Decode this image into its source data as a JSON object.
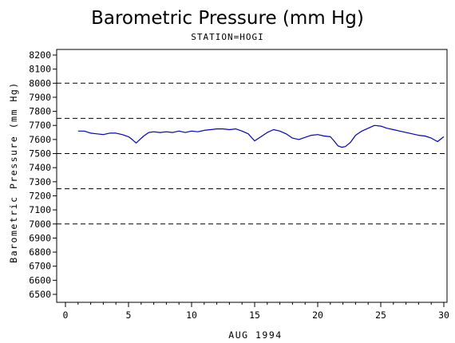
{
  "chart_data": {
    "type": "line",
    "title": "Barometric Pressure (mm Hg)",
    "subtitle": "STATION=HOGI",
    "xlabel": "AUG 1994",
    "ylabel": "Barometric Pressure (mm Hg)",
    "xlim": [
      0,
      30
    ],
    "ylim": [
      6500,
      8200
    ],
    "x_ticks": [
      "0",
      "5",
      "10",
      "15",
      "20",
      "25",
      "30"
    ],
    "y_ticks": [
      "6500",
      "6600",
      "6700",
      "6800",
      "6900",
      "7000",
      "7100",
      "7200",
      "7300",
      "7400",
      "7500",
      "7600",
      "7700",
      "7800",
      "7900",
      "8000",
      "8100",
      "8200"
    ],
    "reference_lines": [
      7000,
      7250,
      7500,
      7750,
      8000
    ],
    "series": [
      {
        "color": "#0000cc",
        "x": [
          1.0,
          1.5,
          2.0,
          2.5,
          3.0,
          3.5,
          4.0,
          4.5,
          5.0,
          5.3,
          5.6,
          5.9,
          6.2,
          6.6,
          7.0,
          7.5,
          8.0,
          8.5,
          9.0,
          9.5,
          10.0,
          10.5,
          11.0,
          11.5,
          12.0,
          12.5,
          13.0,
          13.5,
          14.0,
          14.5,
          14.8,
          15.0,
          15.5,
          16.0,
          16.5,
          17.0,
          17.5,
          18.0,
          18.5,
          19.0,
          19.5,
          20.0,
          20.5,
          21.0,
          21.3,
          21.6,
          21.9,
          22.2,
          22.6,
          23.0,
          23.5,
          24.0,
          24.5,
          25.0,
          25.5,
          26.0,
          26.5,
          27.0,
          27.5,
          28.0,
          28.5,
          29.0,
          29.5,
          30.0
        ],
        "values": [
          7660,
          7660,
          7645,
          7640,
          7635,
          7645,
          7645,
          7635,
          7620,
          7600,
          7575,
          7600,
          7625,
          7650,
          7655,
          7650,
          7655,
          7650,
          7660,
          7650,
          7660,
          7655,
          7665,
          7670,
          7675,
          7675,
          7670,
          7675,
          7660,
          7640,
          7610,
          7590,
          7620,
          7650,
          7670,
          7660,
          7640,
          7610,
          7600,
          7615,
          7630,
          7635,
          7625,
          7620,
          7590,
          7555,
          7545,
          7550,
          7580,
          7630,
          7660,
          7680,
          7700,
          7695,
          7680,
          7670,
          7660,
          7650,
          7640,
          7630,
          7625,
          7610,
          7585,
          7620
        ]
      }
    ]
  }
}
